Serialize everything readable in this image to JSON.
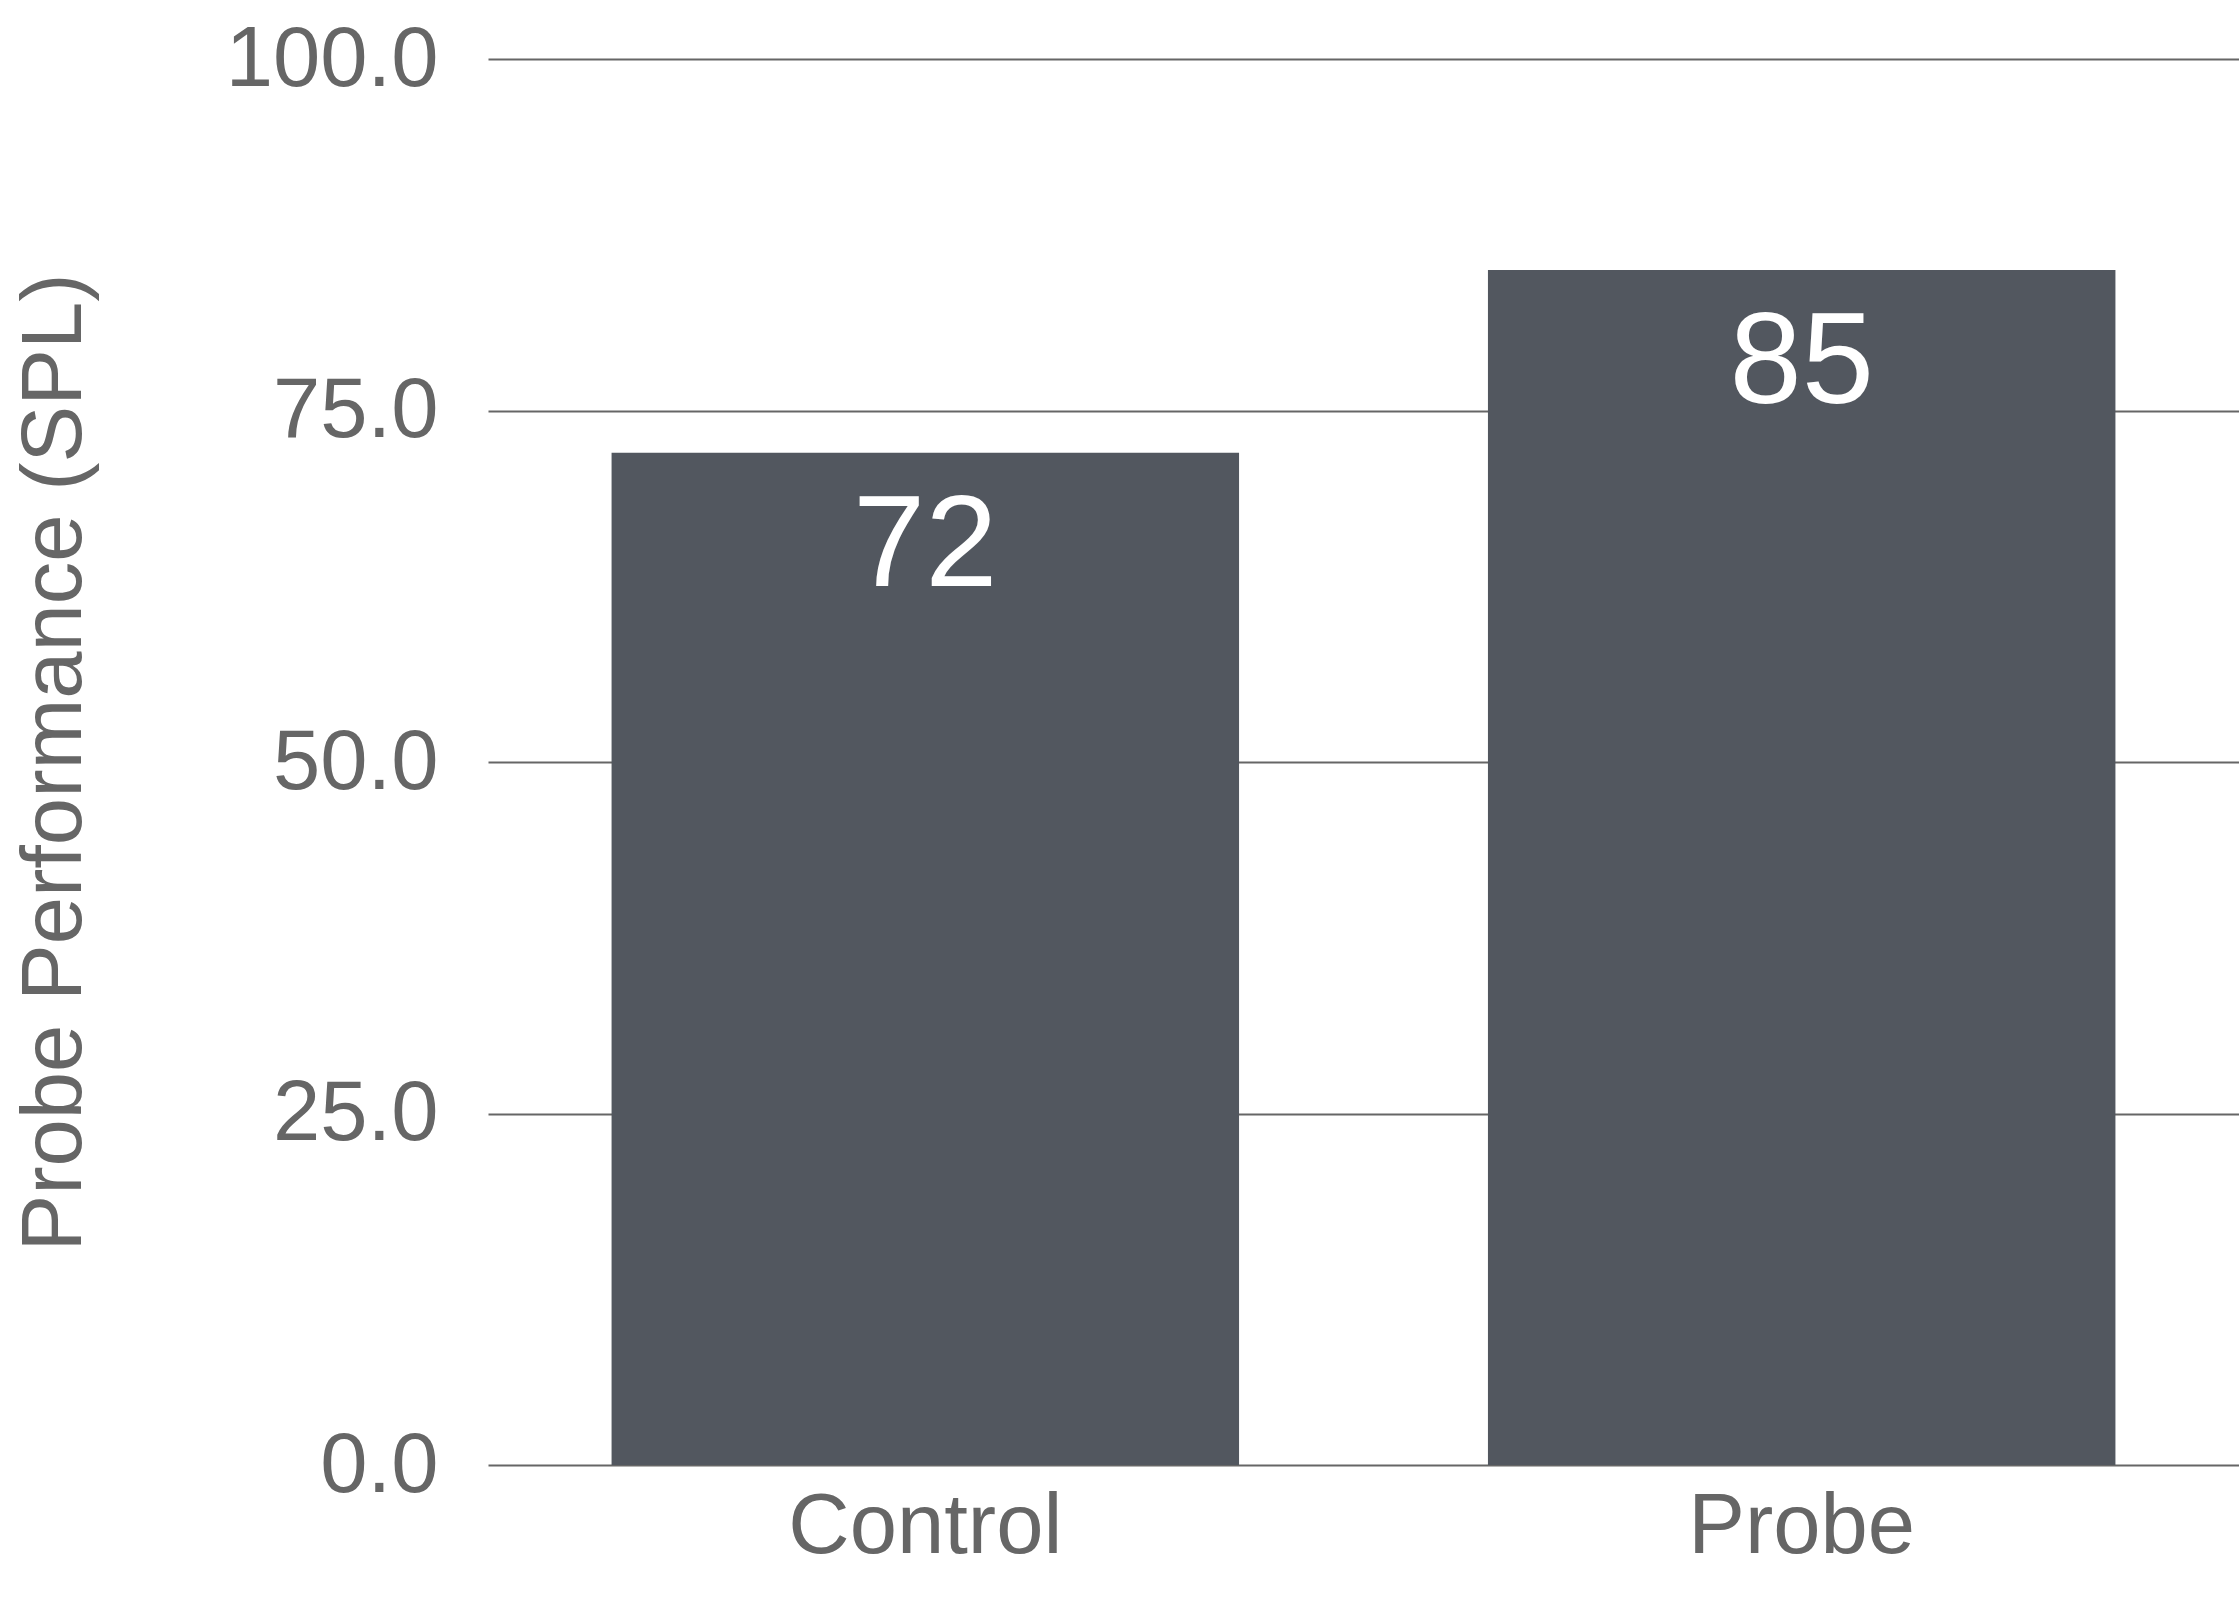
{
  "chart_data": {
    "type": "bar",
    "ylabel": "Probe Performance (SPL)",
    "categories": [
      "Control",
      "Probe"
    ],
    "values": [
      72,
      85
    ],
    "color": "#52575f",
    "ylim": [
      0,
      100
    ],
    "yticks": [
      {
        "value": 0,
        "label": "0.0"
      },
      {
        "value": 25,
        "label": "25.0"
      },
      {
        "value": 50,
        "label": "50.0"
      },
      {
        "value": 75,
        "label": "75.0"
      },
      {
        "value": 100,
        "label": "100.0"
      }
    ],
    "grid": "y",
    "data_labels": true
  }
}
